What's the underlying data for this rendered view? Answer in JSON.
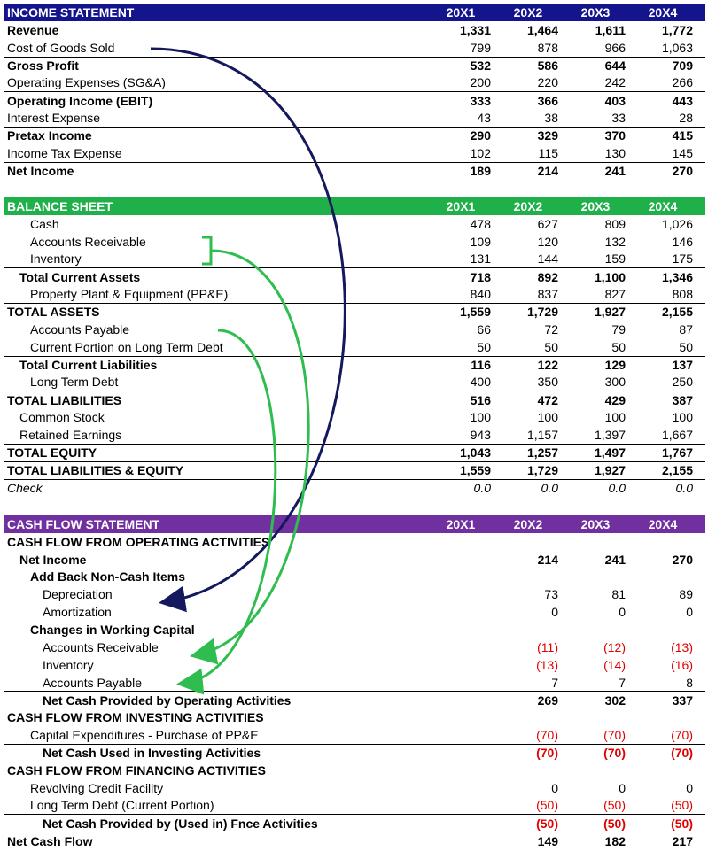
{
  "income_statement": {
    "title": "INCOME STATEMENT",
    "columns": [
      "20X1",
      "20X2",
      "20X3",
      "20X4"
    ],
    "rows": [
      {
        "label": "Revenue",
        "values": [
          "1,331",
          "1,464",
          "1,611",
          "1,772"
        ]
      },
      {
        "label": "Cost of Goods Sold",
        "values": [
          "799",
          "878",
          "966",
          "1,063"
        ]
      },
      {
        "label": "Gross Profit",
        "values": [
          "532",
          "586",
          "644",
          "709"
        ]
      },
      {
        "label": "Operating Expenses (SG&A)",
        "values": [
          "200",
          "220",
          "242",
          "266"
        ]
      },
      {
        "label": "Operating Income (EBIT)",
        "values": [
          "333",
          "366",
          "403",
          "443"
        ]
      },
      {
        "label": "Interest Expense",
        "values": [
          "43",
          "38",
          "33",
          "28"
        ]
      },
      {
        "label": "Pretax Income",
        "values": [
          "290",
          "329",
          "370",
          "415"
        ]
      },
      {
        "label": "Income Tax Expense",
        "values": [
          "102",
          "115",
          "130",
          "145"
        ]
      },
      {
        "label": "Net Income",
        "values": [
          "189",
          "214",
          "241",
          "270"
        ]
      }
    ]
  },
  "balance_sheet": {
    "title": "BALANCE SHEET",
    "columns": [
      "20X1",
      "20X2",
      "20X3",
      "20X4"
    ],
    "rows": [
      {
        "label": "Cash",
        "values": [
          "478",
          "627",
          "809",
          "1,026"
        ]
      },
      {
        "label": "Accounts Receivable",
        "values": [
          "109",
          "120",
          "132",
          "146"
        ]
      },
      {
        "label": "Inventory",
        "values": [
          "131",
          "144",
          "159",
          "175"
        ]
      },
      {
        "label": "Total Current Assets",
        "values": [
          "718",
          "892",
          "1,100",
          "1,346"
        ]
      },
      {
        "label": "Property Plant & Equipment (PP&E)",
        "values": [
          "840",
          "837",
          "827",
          "808"
        ]
      },
      {
        "label": "TOTAL ASSETS",
        "values": [
          "1,559",
          "1,729",
          "1,927",
          "2,155"
        ]
      },
      {
        "label": "Accounts Payable",
        "values": [
          "66",
          "72",
          "79",
          "87"
        ]
      },
      {
        "label": "Current Portion on Long Term Debt",
        "values": [
          "50",
          "50",
          "50",
          "50"
        ]
      },
      {
        "label": "Total Current Liabilities",
        "values": [
          "116",
          "122",
          "129",
          "137"
        ]
      },
      {
        "label": "Long Term Debt",
        "values": [
          "400",
          "350",
          "300",
          "250"
        ]
      },
      {
        "label": "TOTAL LIABILITIES",
        "values": [
          "516",
          "472",
          "429",
          "387"
        ]
      },
      {
        "label": "Common Stock",
        "values": [
          "100",
          "100",
          "100",
          "100"
        ]
      },
      {
        "label": "Retained Earnings",
        "values": [
          "943",
          "1,157",
          "1,397",
          "1,667"
        ]
      },
      {
        "label": "TOTAL EQUITY",
        "values": [
          "1,043",
          "1,257",
          "1,497",
          "1,767"
        ]
      },
      {
        "label": "TOTAL LIABILITIES & EQUITY",
        "values": [
          "1,559",
          "1,729",
          "1,927",
          "2,155"
        ]
      },
      {
        "label": "Check",
        "values": [
          "0.0",
          "0.0",
          "0.0",
          "0.0"
        ]
      }
    ]
  },
  "cash_flow_statement": {
    "title": "CASH FLOW STATEMENT",
    "columns": [
      "20X1",
      "20X2",
      "20X3",
      "20X4"
    ],
    "rows": [
      {
        "label": "CASH FLOW FROM OPERATING ACTIVITIES"
      },
      {
        "label": "Net Income",
        "values": [
          null,
          "214",
          "241",
          "270"
        ]
      },
      {
        "label": "Add Back Non-Cash Items"
      },
      {
        "label": "Depreciation",
        "values": [
          null,
          "73",
          "81",
          "89"
        ]
      },
      {
        "label": "Amortization",
        "values": [
          null,
          "0",
          "0",
          "0"
        ]
      },
      {
        "label": "Changes in Working Capital"
      },
      {
        "label": "Accounts Receivable",
        "values": [
          null,
          "(11)",
          "(12)",
          "(13)"
        ]
      },
      {
        "label": "Inventory",
        "values": [
          null,
          "(13)",
          "(14)",
          "(16)"
        ]
      },
      {
        "label": "Accounts Payable",
        "values": [
          null,
          "7",
          "7",
          "8"
        ]
      },
      {
        "label": "Net Cash Provided by Operating Activities",
        "values": [
          null,
          "269",
          "302",
          "337"
        ]
      },
      {
        "label": "CASH FLOW FROM INVESTING ACTIVITIES"
      },
      {
        "label": "Capital Expenditures - Purchase of PP&E",
        "values": [
          null,
          "(70)",
          "(70)",
          "(70)"
        ]
      },
      {
        "label": "Net Cash Used in Investing Activities",
        "values": [
          null,
          "(70)",
          "(70)",
          "(70)"
        ]
      },
      {
        "label": "CASH FLOW FROM FINANCING ACTIVITIES"
      },
      {
        "label": "Revolving Credit Facility",
        "values": [
          null,
          "0",
          "0",
          "0"
        ]
      },
      {
        "label": "Long Term Debt (Current Portion)",
        "values": [
          null,
          "(50)",
          "(50)",
          "(50)"
        ]
      },
      {
        "label": "Net Cash Provided by (Used in) Fnce Activities",
        "values": [
          null,
          "(50)",
          "(50)",
          "(50)"
        ]
      },
      {
        "label": "Net Cash Flow",
        "values": [
          null,
          "149",
          "182",
          "217"
        ]
      }
    ]
  }
}
